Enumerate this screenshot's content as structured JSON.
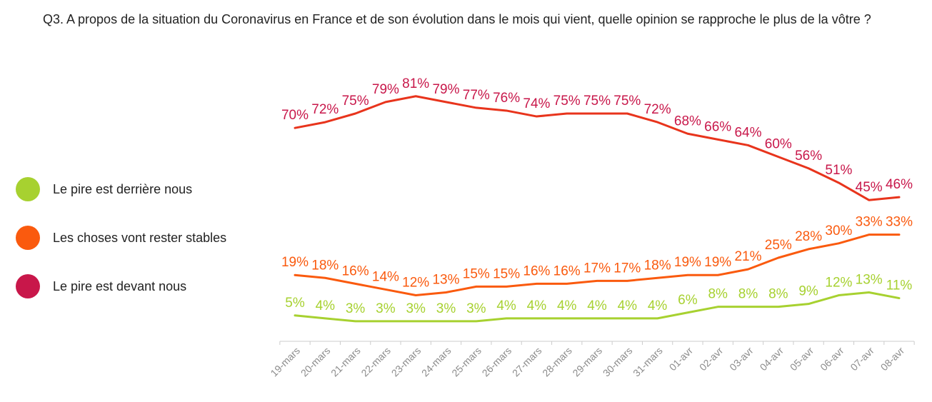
{
  "question": "Q3.  A propos de la situation du Coronavirus en France et de son évolution dans le mois qui vient, quelle opinion se rapproche le plus de la vôtre ?",
  "chart_data": {
    "type": "line",
    "title": "",
    "xlabel": "",
    "ylabel": "",
    "categories": [
      "19-mars",
      "20-mars",
      "21-mars",
      "22-mars",
      "23-mars",
      "24-mars",
      "25-mars",
      "26-mars",
      "27-mars",
      "28-mars",
      "29-mars",
      "30-mars",
      "31-mars",
      "01-avr",
      "02-avr",
      "03-avr",
      "04-avr",
      "05-avr",
      "06-avr",
      "07-avr",
      "08-avr"
    ],
    "series": [
      {
        "name": "Le pire est derrière nous",
        "color": "#a7d130",
        "values": [
          5,
          4,
          3,
          3,
          3,
          3,
          3,
          4,
          4,
          4,
          4,
          4,
          4,
          6,
          8,
          8,
          8,
          9,
          12,
          13,
          11
        ],
        "labels": [
          "5%",
          "4%",
          "3%",
          "3%",
          "3%",
          "3%",
          "3%",
          "4%",
          "4%",
          "4%",
          "4%",
          "4%",
          "4%",
          "6%",
          "8%",
          "8%",
          "8%",
          "9%",
          "12%",
          "13%",
          "11%"
        ]
      },
      {
        "name": "Les choses vont rester stables",
        "color": "#fa5a0e",
        "values": [
          19,
          18,
          16,
          14,
          12,
          13,
          15,
          15,
          16,
          16,
          17,
          17,
          18,
          19,
          19,
          21,
          25,
          28,
          30,
          33,
          33
        ],
        "labels": [
          "19%",
          "18%",
          "16%",
          "14%",
          "12%",
          "13%",
          "15%",
          "15%",
          "16%",
          "16%",
          "17%",
          "17%",
          "18%",
          "19%",
          "19%",
          "21%",
          "25%",
          "28%",
          "30%",
          "33%",
          "33%"
        ]
      },
      {
        "name": "Le pire est devant nous",
        "color": "#c8174a",
        "line_color": "#e8341c",
        "values": [
          70,
          72,
          75,
          79,
          81,
          79,
          77,
          76,
          74,
          75,
          75,
          75,
          72,
          68,
          66,
          64,
          60,
          56,
          51,
          45,
          46
        ],
        "labels": [
          "70%",
          "72%",
          "75%",
          "79%",
          "81%",
          "79%",
          "77%",
          "76%",
          "74%",
          "75%",
          "75%",
          "75%",
          "72%",
          "68%",
          "66%",
          "64%",
          "60%",
          "56%",
          "51%",
          "45%",
          "46%"
        ]
      }
    ],
    "legend_position": "left",
    "grid": false,
    "axis_color": "#cccccc",
    "tick_label_color": "#8c8c8c"
  }
}
